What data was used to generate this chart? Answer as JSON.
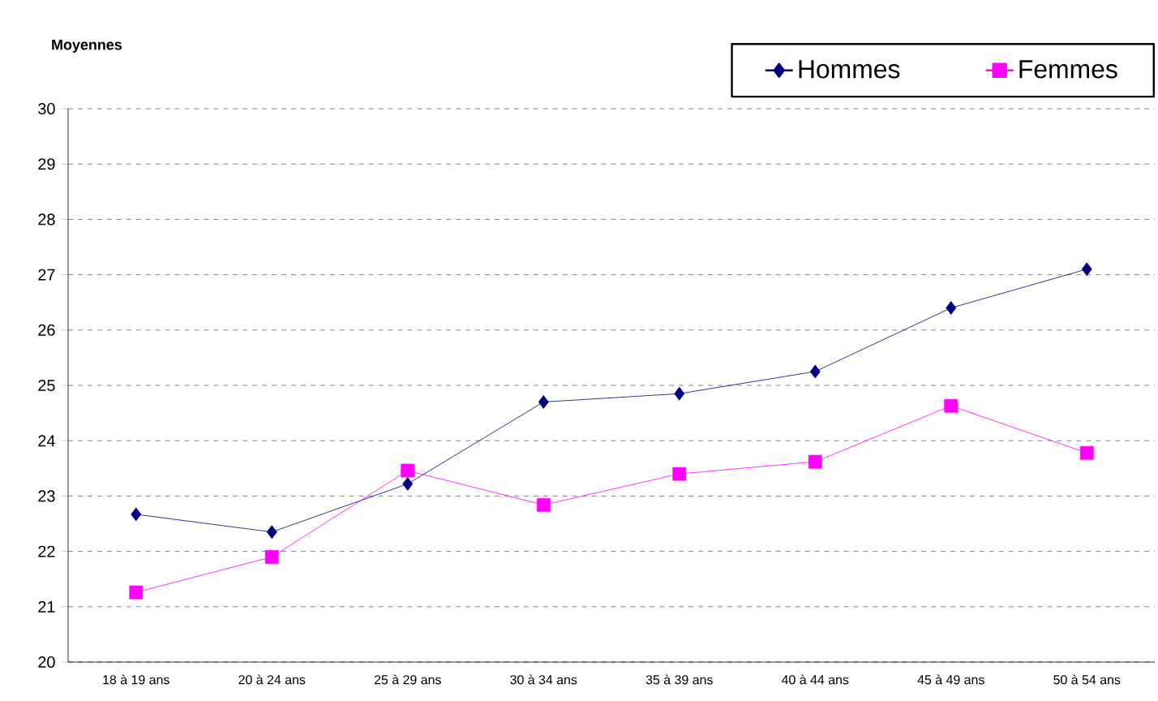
{
  "chart_data": {
    "type": "line",
    "ylabel": "Moyennes",
    "categories": [
      "18 à 19 ans",
      "20 à 24 ans",
      "25 à 29 ans",
      "30 à 34 ans",
      "35 à 39 ans",
      "40 à 44 ans",
      "45 à 49 ans",
      "50 à 54 ans"
    ],
    "series": [
      {
        "name": "Hommes",
        "color": "#000080",
        "marker": "diamond",
        "values": [
          22.67,
          22.35,
          23.22,
          24.7,
          24.85,
          25.25,
          26.4,
          27.1
        ]
      },
      {
        "name": "Femmes",
        "color": "#ff00ff",
        "marker": "square",
        "values": [
          21.26,
          21.9,
          23.46,
          22.84,
          23.4,
          23.62,
          24.63,
          23.78
        ]
      }
    ],
    "ylim": [
      20,
      30
    ],
    "yticks": [
      20,
      21,
      22,
      23,
      24,
      25,
      26,
      27,
      28,
      29,
      30
    ],
    "grid": "y",
    "legend": "top right"
  }
}
